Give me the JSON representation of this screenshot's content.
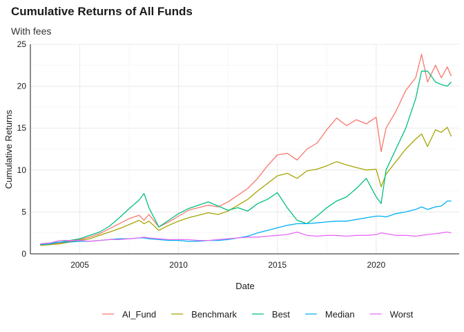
{
  "chart_data": {
    "type": "line",
    "title": "Cumulative Returns of All Funds",
    "subtitle": "With fees",
    "xlabel": "Date",
    "ylabel": "Cumulative Returns",
    "xlim": [
      2002.5,
      2024.2
    ],
    "ylim": [
      0,
      25
    ],
    "x_ticks": [
      2005,
      2010,
      2015,
      2020
    ],
    "y_ticks": [
      0,
      5,
      10,
      15,
      20,
      25
    ],
    "grid": true,
    "legend_position": "bottom",
    "x": [
      2003.0,
      2003.5,
      2004.0,
      2004.5,
      2005.0,
      2005.5,
      2006.0,
      2006.5,
      2007.0,
      2007.5,
      2008.0,
      2008.25,
      2008.5,
      2009.0,
      2009.5,
      2010.0,
      2010.5,
      2011.0,
      2011.5,
      2012.0,
      2012.5,
      2013.0,
      2013.5,
      2014.0,
      2014.5,
      2015.0,
      2015.5,
      2016.0,
      2016.5,
      2017.0,
      2017.5,
      2018.0,
      2018.5,
      2019.0,
      2019.5,
      2020.0,
      2020.25,
      2020.5,
      2021.0,
      2021.5,
      2022.0,
      2022.3,
      2022.6,
      2023.0,
      2023.3,
      2023.6,
      2023.8
    ],
    "series": [
      {
        "name": "AI_Fund",
        "color": "#F8766D",
        "values": [
          1.1,
          1.2,
          1.3,
          1.5,
          1.7,
          2.0,
          2.4,
          3.0,
          3.6,
          4.2,
          4.6,
          4.0,
          4.7,
          3.2,
          3.8,
          4.5,
          5.2,
          5.5,
          5.8,
          5.6,
          6.2,
          7.0,
          7.8,
          9.0,
          10.5,
          11.8,
          12.0,
          11.2,
          12.5,
          13.2,
          14.8,
          16.2,
          15.3,
          16.0,
          15.5,
          16.3,
          12.2,
          15.0,
          17.0,
          19.5,
          21.0,
          23.8,
          20.5,
          22.5,
          21.0,
          22.3,
          21.2
        ]
      },
      {
        "name": "Benchmark",
        "color": "#A3A500",
        "values": [
          1.0,
          1.1,
          1.2,
          1.4,
          1.6,
          1.8,
          2.2,
          2.6,
          3.0,
          3.5,
          4.0,
          3.6,
          3.9,
          2.8,
          3.4,
          3.9,
          4.3,
          4.6,
          4.9,
          4.7,
          5.1,
          5.8,
          6.5,
          7.5,
          8.4,
          9.3,
          9.6,
          9.0,
          9.9,
          10.1,
          10.5,
          11.0,
          10.6,
          10.3,
          10.0,
          10.1,
          8.0,
          9.5,
          11.0,
          12.5,
          13.7,
          14.3,
          12.8,
          14.8,
          14.5,
          15.1,
          14.0
        ]
      },
      {
        "name": "Best",
        "color": "#00BF7D",
        "values": [
          1.1,
          1.3,
          1.4,
          1.6,
          1.8,
          2.2,
          2.6,
          3.3,
          4.3,
          5.4,
          6.4,
          7.2,
          5.5,
          3.2,
          4.0,
          4.8,
          5.4,
          5.8,
          6.2,
          5.7,
          5.2,
          5.5,
          5.1,
          6.0,
          6.5,
          7.3,
          5.5,
          4.0,
          3.6,
          4.5,
          5.5,
          6.3,
          6.8,
          7.8,
          9.0,
          6.8,
          6.0,
          10.0,
          12.5,
          15.0,
          18.5,
          21.8,
          21.8,
          20.5,
          20.2,
          20.0,
          20.5
        ]
      },
      {
        "name": "Median",
        "color": "#00B0F6",
        "values": [
          1.1,
          1.2,
          1.4,
          1.4,
          1.5,
          1.5,
          1.6,
          1.7,
          1.8,
          1.8,
          1.9,
          1.9,
          1.8,
          1.7,
          1.6,
          1.6,
          1.5,
          1.5,
          1.6,
          1.6,
          1.7,
          1.9,
          2.1,
          2.5,
          2.8,
          3.1,
          3.4,
          3.6,
          3.6,
          3.7,
          3.8,
          3.9,
          3.9,
          4.1,
          4.3,
          4.5,
          4.5,
          4.4,
          4.8,
          5.0,
          5.3,
          5.6,
          5.3,
          5.6,
          5.7,
          6.3,
          6.3
        ]
      },
      {
        "name": "Worst",
        "color": "#E76BF3",
        "values": [
          1.2,
          1.3,
          1.6,
          1.6,
          1.6,
          1.5,
          1.6,
          1.7,
          1.7,
          1.8,
          1.9,
          2.0,
          1.9,
          1.8,
          1.7,
          1.7,
          1.7,
          1.6,
          1.6,
          1.7,
          1.8,
          1.9,
          2.0,
          2.0,
          2.1,
          2.2,
          2.3,
          2.6,
          2.2,
          2.1,
          2.2,
          2.2,
          2.1,
          2.2,
          2.2,
          2.3,
          2.5,
          2.4,
          2.2,
          2.2,
          2.1,
          2.2,
          2.3,
          2.4,
          2.5,
          2.6,
          2.5
        ]
      }
    ]
  }
}
